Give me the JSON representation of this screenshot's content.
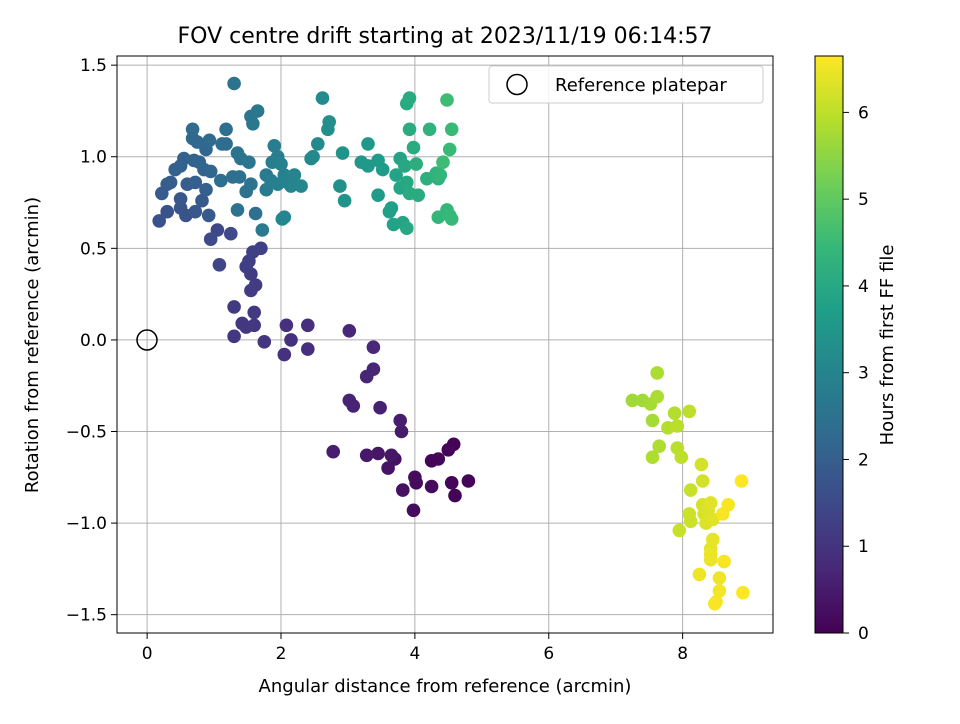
{
  "chart_data": {
    "type": "scatter",
    "title": "FOV centre drift starting at 2023/11/19 06:14:57",
    "xlabel": "Angular distance from reference (arcmin)",
    "ylabel": "Rotation from reference (arcmin)",
    "xlim": [
      -0.45,
      9.35
    ],
    "ylim": [
      -1.6,
      1.55
    ],
    "x_ticks": [
      0,
      2,
      4,
      6,
      8
    ],
    "y_ticks": [
      -1.5,
      -1.0,
      -0.5,
      0.0,
      0.5,
      1.0,
      1.5
    ],
    "grid": true,
    "legend": {
      "position": "top-right",
      "entries": [
        "Reference platepar"
      ]
    },
    "reference": {
      "x": 0,
      "y": 0,
      "label": "Reference platepar"
    },
    "colorbar": {
      "label": "Hours from first FF file",
      "range": [
        0,
        6.65
      ],
      "ticks": [
        0,
        1,
        2,
        3,
        4,
        5,
        6
      ],
      "colormap": "viridis"
    },
    "points": [
      {
        "x": 3.98,
        "y": -0.93,
        "h": 0.2
      },
      {
        "x": 4.6,
        "y": -0.85,
        "h": 0.05
      },
      {
        "x": 4.8,
        "y": -0.77,
        "h": 0.1
      },
      {
        "x": 4.55,
        "y": -0.78,
        "h": 0.1
      },
      {
        "x": 4.58,
        "y": -0.57,
        "h": 0.05
      },
      {
        "x": 4.5,
        "y": -0.6,
        "h": 0.1
      },
      {
        "x": 4.35,
        "y": -0.65,
        "h": 0.15
      },
      {
        "x": 4.25,
        "y": -0.66,
        "h": 0.1
      },
      {
        "x": 4.25,
        "y": -0.8,
        "h": 0.2
      },
      {
        "x": 4.02,
        "y": -0.78,
        "h": 0.2
      },
      {
        "x": 4.0,
        "y": -0.75,
        "h": 0.2
      },
      {
        "x": 3.82,
        "y": -0.82,
        "h": 0.3
      },
      {
        "x": 3.7,
        "y": -0.65,
        "h": 0.3
      },
      {
        "x": 3.6,
        "y": -0.7,
        "h": 0.35
      },
      {
        "x": 3.45,
        "y": -0.62,
        "h": 0.4
      },
      {
        "x": 3.65,
        "y": -0.63,
        "h": 0.4
      },
      {
        "x": 3.28,
        "y": -0.63,
        "h": 0.45
      },
      {
        "x": 2.78,
        "y": -0.61,
        "h": 0.55
      },
      {
        "x": 3.8,
        "y": -0.5,
        "h": 0.5
      },
      {
        "x": 3.78,
        "y": -0.44,
        "h": 0.55
      },
      {
        "x": 3.48,
        "y": -0.37,
        "h": 0.6
      },
      {
        "x": 3.08,
        "y": -0.36,
        "h": 0.65
      },
      {
        "x": 3.02,
        "y": -0.33,
        "h": 0.65
      },
      {
        "x": 3.28,
        "y": -0.2,
        "h": 0.7
      },
      {
        "x": 3.38,
        "y": -0.16,
        "h": 0.7
      },
      {
        "x": 3.38,
        "y": -0.04,
        "h": 0.75
      },
      {
        "x": 3.02,
        "y": 0.05,
        "h": 0.75
      },
      {
        "x": 2.4,
        "y": -0.05,
        "h": 0.9
      },
      {
        "x": 2.4,
        "y": 0.08,
        "h": 0.9
      },
      {
        "x": 2.15,
        "y": 0.0,
        "h": 0.95
      },
      {
        "x": 2.05,
        "y": -0.08,
        "h": 0.95
      },
      {
        "x": 2.08,
        "y": 0.08,
        "h": 0.95
      },
      {
        "x": 1.75,
        "y": -0.01,
        "h": 1.05
      },
      {
        "x": 1.6,
        "y": 0.08,
        "h": 1.1
      },
      {
        "x": 1.48,
        "y": 0.07,
        "h": 1.1
      },
      {
        "x": 1.42,
        "y": 0.09,
        "h": 1.1
      },
      {
        "x": 1.3,
        "y": 0.02,
        "h": 1.1
      },
      {
        "x": 1.3,
        "y": 0.18,
        "h": 1.15
      },
      {
        "x": 1.6,
        "y": 0.15,
        "h": 1.15
      },
      {
        "x": 1.55,
        "y": 0.27,
        "h": 1.2
      },
      {
        "x": 1.62,
        "y": 0.3,
        "h": 1.2
      },
      {
        "x": 1.55,
        "y": 0.36,
        "h": 1.2
      },
      {
        "x": 1.48,
        "y": 0.4,
        "h": 1.25
      },
      {
        "x": 1.52,
        "y": 0.43,
        "h": 1.25
      },
      {
        "x": 1.58,
        "y": 0.48,
        "h": 1.3
      },
      {
        "x": 1.7,
        "y": 0.5,
        "h": 1.3
      },
      {
        "x": 1.08,
        "y": 0.41,
        "h": 1.4
      },
      {
        "x": 1.05,
        "y": 0.6,
        "h": 1.45
      },
      {
        "x": 1.25,
        "y": 0.58,
        "h": 1.5
      },
      {
        "x": 0.95,
        "y": 0.55,
        "h": 1.5
      },
      {
        "x": 0.18,
        "y": 0.65,
        "h": 1.7
      },
      {
        "x": 0.3,
        "y": 0.7,
        "h": 1.7
      },
      {
        "x": 0.58,
        "y": 0.68,
        "h": 1.75
      },
      {
        "x": 0.5,
        "y": 0.72,
        "h": 1.75
      },
      {
        "x": 0.5,
        "y": 0.77,
        "h": 1.8
      },
      {
        "x": 0.72,
        "y": 0.7,
        "h": 1.8
      },
      {
        "x": 0.92,
        "y": 0.68,
        "h": 1.85
      },
      {
        "x": 0.82,
        "y": 0.76,
        "h": 1.85
      },
      {
        "x": 0.22,
        "y": 0.8,
        "h": 1.9
      },
      {
        "x": 0.3,
        "y": 0.85,
        "h": 1.9
      },
      {
        "x": 0.35,
        "y": 0.86,
        "h": 1.95
      },
      {
        "x": 0.6,
        "y": 0.85,
        "h": 1.95
      },
      {
        "x": 0.72,
        "y": 0.86,
        "h": 2.0
      },
      {
        "x": 0.88,
        "y": 0.82,
        "h": 2.0
      },
      {
        "x": 0.42,
        "y": 0.93,
        "h": 2.05
      },
      {
        "x": 0.5,
        "y": 0.95,
        "h": 2.05
      },
      {
        "x": 0.55,
        "y": 0.99,
        "h": 2.1
      },
      {
        "x": 0.7,
        "y": 0.98,
        "h": 2.1
      },
      {
        "x": 0.78,
        "y": 0.97,
        "h": 2.15
      },
      {
        "x": 0.85,
        "y": 0.93,
        "h": 2.15
      },
      {
        "x": 0.95,
        "y": 0.92,
        "h": 2.2
      },
      {
        "x": 0.88,
        "y": 1.04,
        "h": 2.2
      },
      {
        "x": 0.75,
        "y": 1.08,
        "h": 2.25
      },
      {
        "x": 0.68,
        "y": 1.1,
        "h": 2.25
      },
      {
        "x": 0.68,
        "y": 1.15,
        "h": 2.3
      },
      {
        "x": 0.93,
        "y": 1.09,
        "h": 2.3
      },
      {
        "x": 1.12,
        "y": 1.07,
        "h": 2.35
      },
      {
        "x": 1.18,
        "y": 1.07,
        "h": 2.35
      },
      {
        "x": 1.18,
        "y": 1.15,
        "h": 2.4
      },
      {
        "x": 1.1,
        "y": 0.87,
        "h": 2.4
      },
      {
        "x": 1.28,
        "y": 0.89,
        "h": 2.45
      },
      {
        "x": 1.38,
        "y": 0.89,
        "h": 2.45
      },
      {
        "x": 1.48,
        "y": 0.81,
        "h": 2.5
      },
      {
        "x": 1.55,
        "y": 0.85,
        "h": 2.5
      },
      {
        "x": 1.62,
        "y": 0.69,
        "h": 2.45
      },
      {
        "x": 1.35,
        "y": 0.71,
        "h": 2.5
      },
      {
        "x": 1.35,
        "y": 1.02,
        "h": 2.55
      },
      {
        "x": 1.4,
        "y": 0.99,
        "h": 2.55
      },
      {
        "x": 1.52,
        "y": 0.97,
        "h": 2.6
      },
      {
        "x": 1.55,
        "y": 1.22,
        "h": 2.6
      },
      {
        "x": 1.58,
        "y": 1.18,
        "h": 2.65
      },
      {
        "x": 1.65,
        "y": 1.25,
        "h": 2.65
      },
      {
        "x": 1.3,
        "y": 1.4,
        "h": 2.55
      },
      {
        "x": 1.72,
        "y": 0.6,
        "h": 2.7
      },
      {
        "x": 1.78,
        "y": 0.82,
        "h": 2.75
      },
      {
        "x": 1.78,
        "y": 0.9,
        "h": 2.75
      },
      {
        "x": 1.85,
        "y": 0.87,
        "h": 2.8
      },
      {
        "x": 1.87,
        "y": 0.97,
        "h": 2.8
      },
      {
        "x": 1.9,
        "y": 1.06,
        "h": 2.85
      },
      {
        "x": 1.95,
        "y": 1.0,
        "h": 2.85
      },
      {
        "x": 1.95,
        "y": 0.85,
        "h": 2.9
      },
      {
        "x": 2.0,
        "y": 0.96,
        "h": 2.9
      },
      {
        "x": 2.05,
        "y": 0.9,
        "h": 2.95
      },
      {
        "x": 2.1,
        "y": 0.86,
        "h": 2.95
      },
      {
        "x": 2.15,
        "y": 0.84,
        "h": 3.0
      },
      {
        "x": 2.2,
        "y": 0.9,
        "h": 3.0
      },
      {
        "x": 2.05,
        "y": 0.67,
        "h": 3.05
      },
      {
        "x": 2.02,
        "y": 0.66,
        "h": 3.05
      },
      {
        "x": 2.3,
        "y": 0.84,
        "h": 3.1
      },
      {
        "x": 2.45,
        "y": 0.99,
        "h": 3.15
      },
      {
        "x": 2.48,
        "y": 1.0,
        "h": 3.15
      },
      {
        "x": 2.55,
        "y": 1.07,
        "h": 3.2
      },
      {
        "x": 2.62,
        "y": 1.32,
        "h": 3.2
      },
      {
        "x": 2.7,
        "y": 1.15,
        "h": 3.3
      },
      {
        "x": 2.72,
        "y": 1.19,
        "h": 3.3
      },
      {
        "x": 2.88,
        "y": 0.84,
        "h": 3.35
      },
      {
        "x": 2.95,
        "y": 0.76,
        "h": 3.4
      },
      {
        "x": 2.92,
        "y": 1.02,
        "h": 3.4
      },
      {
        "x": 3.2,
        "y": 0.97,
        "h": 3.5
      },
      {
        "x": 3.3,
        "y": 0.95,
        "h": 3.55
      },
      {
        "x": 3.3,
        "y": 1.07,
        "h": 3.55
      },
      {
        "x": 3.45,
        "y": 0.98,
        "h": 3.6
      },
      {
        "x": 3.45,
        "y": 0.79,
        "h": 3.65
      },
      {
        "x": 3.52,
        "y": 0.93,
        "h": 3.65
      },
      {
        "x": 3.62,
        "y": 0.7,
        "h": 3.75
      },
      {
        "x": 3.65,
        "y": 0.72,
        "h": 3.75
      },
      {
        "x": 3.68,
        "y": 0.63,
        "h": 3.8
      },
      {
        "x": 3.72,
        "y": 0.9,
        "h": 3.85
      },
      {
        "x": 3.78,
        "y": 0.99,
        "h": 3.85
      },
      {
        "x": 3.78,
        "y": 0.83,
        "h": 3.9
      },
      {
        "x": 3.82,
        "y": 0.64,
        "h": 3.9
      },
      {
        "x": 3.88,
        "y": 0.61,
        "h": 3.95
      },
      {
        "x": 3.85,
        "y": 0.95,
        "h": 4.0
      },
      {
        "x": 3.88,
        "y": 0.86,
        "h": 4.0
      },
      {
        "x": 3.92,
        "y": 0.8,
        "h": 4.05
      },
      {
        "x": 4.05,
        "y": 0.79,
        "h": 4.1
      },
      {
        "x": 3.88,
        "y": 1.29,
        "h": 4.05
      },
      {
        "x": 3.92,
        "y": 1.32,
        "h": 4.05
      },
      {
        "x": 3.92,
        "y": 1.15,
        "h": 4.1
      },
      {
        "x": 3.98,
        "y": 1.05,
        "h": 4.1
      },
      {
        "x": 4.02,
        "y": 0.96,
        "h": 4.15
      },
      {
        "x": 4.18,
        "y": 0.88,
        "h": 4.2
      },
      {
        "x": 4.22,
        "y": 1.15,
        "h": 4.25
      },
      {
        "x": 4.32,
        "y": 0.91,
        "h": 4.3
      },
      {
        "x": 4.35,
        "y": 0.88,
        "h": 4.3
      },
      {
        "x": 4.38,
        "y": 0.9,
        "h": 4.35
      },
      {
        "x": 4.35,
        "y": 0.67,
        "h": 4.4
      },
      {
        "x": 4.48,
        "y": 0.71,
        "h": 4.4
      },
      {
        "x": 4.52,
        "y": 0.68,
        "h": 4.45
      },
      {
        "x": 4.55,
        "y": 0.66,
        "h": 4.45
      },
      {
        "x": 4.52,
        "y": 1.04,
        "h": 4.5
      },
      {
        "x": 4.55,
        "y": 1.15,
        "h": 4.5
      },
      {
        "x": 4.48,
        "y": 1.31,
        "h": 4.55
      },
      {
        "x": 4.42,
        "y": 0.97,
        "h": 4.55
      },
      {
        "x": 7.25,
        "y": -0.33,
        "h": 5.7
      },
      {
        "x": 7.4,
        "y": -0.33,
        "h": 5.7
      },
      {
        "x": 7.52,
        "y": -0.35,
        "h": 5.75
      },
      {
        "x": 7.55,
        "y": -0.44,
        "h": 5.75
      },
      {
        "x": 7.62,
        "y": -0.31,
        "h": 5.8
      },
      {
        "x": 7.62,
        "y": -0.18,
        "h": 5.8
      },
      {
        "x": 7.65,
        "y": -0.58,
        "h": 5.85
      },
      {
        "x": 7.55,
        "y": -0.64,
        "h": 5.85
      },
      {
        "x": 7.78,
        "y": -0.48,
        "h": 5.9
      },
      {
        "x": 7.88,
        "y": -0.4,
        "h": 5.9
      },
      {
        "x": 7.92,
        "y": -0.47,
        "h": 5.95
      },
      {
        "x": 7.92,
        "y": -0.59,
        "h": 5.95
      },
      {
        "x": 7.98,
        "y": -0.64,
        "h": 6.0
      },
      {
        "x": 8.1,
        "y": -0.39,
        "h": 6.0
      },
      {
        "x": 7.95,
        "y": -1.04,
        "h": 6.1
      },
      {
        "x": 8.12,
        "y": -0.82,
        "h": 6.1
      },
      {
        "x": 8.1,
        "y": -0.95,
        "h": 6.15
      },
      {
        "x": 8.12,
        "y": -0.99,
        "h": 6.15
      },
      {
        "x": 8.28,
        "y": -0.68,
        "h": 6.2
      },
      {
        "x": 8.3,
        "y": -0.77,
        "h": 6.2
      },
      {
        "x": 8.3,
        "y": -0.9,
        "h": 6.25
      },
      {
        "x": 8.32,
        "y": -0.95,
        "h": 6.25
      },
      {
        "x": 8.35,
        "y": -1.0,
        "h": 6.3
      },
      {
        "x": 8.38,
        "y": -0.93,
        "h": 6.3
      },
      {
        "x": 8.42,
        "y": -0.89,
        "h": 6.35
      },
      {
        "x": 8.45,
        "y": -0.98,
        "h": 6.35
      },
      {
        "x": 8.45,
        "y": -1.09,
        "h": 6.4
      },
      {
        "x": 8.42,
        "y": -1.14,
        "h": 6.4
      },
      {
        "x": 8.42,
        "y": -1.17,
        "h": 6.45
      },
      {
        "x": 8.42,
        "y": -1.2,
        "h": 6.45
      },
      {
        "x": 8.25,
        "y": -1.28,
        "h": 6.5
      },
      {
        "x": 8.55,
        "y": -1.3,
        "h": 6.5
      },
      {
        "x": 8.55,
        "y": -1.37,
        "h": 6.55
      },
      {
        "x": 8.5,
        "y": -1.43,
        "h": 6.55
      },
      {
        "x": 8.48,
        "y": -1.44,
        "h": 6.6
      },
      {
        "x": 8.62,
        "y": -1.21,
        "h": 6.6
      },
      {
        "x": 8.6,
        "y": -0.95,
        "h": 6.6
      },
      {
        "x": 8.68,
        "y": -0.9,
        "h": 6.6
      },
      {
        "x": 8.88,
        "y": -0.77,
        "h": 6.65
      },
      {
        "x": 8.9,
        "y": -1.38,
        "h": 6.65
      }
    ]
  }
}
